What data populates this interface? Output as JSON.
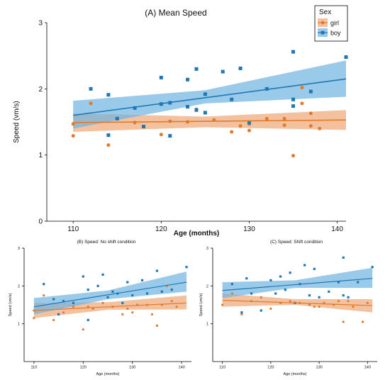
{
  "colors": {
    "girl": "#E07B2E",
    "boy": "#1F77B4",
    "girl_band": "#F0A675",
    "boy_band": "#6FB3E0"
  },
  "chart_data": [
    {
      "type": "scatter",
      "title": "(A) Mean Speed",
      "xlabel": "Age (months)",
      "ylabel": "Speed (vm/s)",
      "xlim": [
        107,
        141
      ],
      "ylim": [
        0,
        3
      ],
      "xticks": [
        110,
        120,
        130,
        140
      ],
      "yticks": [
        0,
        1,
        2,
        3
      ],
      "legend": {
        "title": "Sex",
        "position": "top-right",
        "entries": [
          "girl",
          "boy"
        ]
      },
      "series": [
        {
          "name": "girl",
          "points": [
            [
              110,
              1.29
            ],
            [
              110,
              1.47
            ],
            [
              112,
              1.78
            ],
            [
              114,
              1.15
            ],
            [
              117,
              1.49
            ],
            [
              120,
              1.31
            ],
            [
              121,
              1.51
            ],
            [
              123,
              1.5
            ],
            [
              124,
              1.69
            ],
            [
              126,
              1.53
            ],
            [
              128,
              1.35
            ],
            [
              129,
              1.44
            ],
            [
              130,
              1.37
            ],
            [
              130,
              1.47
            ],
            [
              132,
              1.55
            ],
            [
              134,
              1.55
            ],
            [
              134,
              1.45
            ],
            [
              135,
              0.99
            ],
            [
              136,
              1.78
            ],
            [
              136,
              2.02
            ],
            [
              137,
              1.63
            ],
            [
              137,
              1.44
            ],
            [
              138,
              1.4
            ]
          ],
          "fit": [
            [
              110,
              1.49
            ],
            [
              141,
              1.53
            ]
          ],
          "band": [
            [
              110,
              1.35,
              1.63
            ],
            [
              125,
              1.42,
              1.58
            ],
            [
              141,
              1.38,
              1.68
            ]
          ]
        },
        {
          "name": "boy",
          "points": [
            [
              112,
              2.0
            ],
            [
              114,
              1.91
            ],
            [
              114,
              1.3
            ],
            [
              115,
              1.55
            ],
            [
              117,
              1.71
            ],
            [
              118,
              1.43
            ],
            [
              120,
              2.17
            ],
            [
              120,
              1.77
            ],
            [
              121,
              1.79
            ],
            [
              121,
              1.29
            ],
            [
              123,
              2.14
            ],
            [
              123,
              1.73
            ],
            [
              124,
              2.3
            ],
            [
              124,
              1.68
            ],
            [
              125,
              1.92
            ],
            [
              125,
              1.64
            ],
            [
              127,
              2.26
            ],
            [
              128,
              1.84
            ],
            [
              129,
              2.31
            ],
            [
              130,
              1.49
            ],
            [
              132,
              2.0
            ],
            [
              135,
              2.56
            ],
            [
              135,
              1.84
            ],
            [
              135,
              1.74
            ],
            [
              137,
              1.96
            ],
            [
              141,
              2.48
            ]
          ],
          "fit": [
            [
              110,
              1.6
            ],
            [
              141,
              2.15
            ]
          ],
          "band": [
            [
              110,
              1.4,
              1.82
            ],
            [
              125,
              1.78,
              1.98
            ],
            [
              141,
              1.88,
              2.43
            ]
          ]
        }
      ]
    },
    {
      "type": "scatter",
      "title": "(B) Speed: No shift condition",
      "xlabel": "Age (months)",
      "ylabel": "Speed (vm/s)",
      "xlim": [
        108,
        142
      ],
      "ylim": [
        0,
        3
      ],
      "xticks": [
        110,
        120,
        130,
        140
      ],
      "yticks": [
        1,
        2,
        3
      ],
      "series": [
        {
          "name": "girl",
          "points": [
            [
              110,
              1.35
            ],
            [
              110,
              1.15
            ],
            [
              112,
              1.75
            ],
            [
              114,
              1.1
            ],
            [
              116,
              1.3
            ],
            [
              118,
              1.45
            ],
            [
              120,
              0.85
            ],
            [
              121,
              1.45
            ],
            [
              122,
              1.4
            ],
            [
              124,
              1.55
            ],
            [
              126,
              1.45
            ],
            [
              128,
              1.25
            ],
            [
              129,
              1.4
            ],
            [
              130,
              1.3
            ],
            [
              131,
              1.5
            ],
            [
              133,
              1.5
            ],
            [
              134,
              1.25
            ],
            [
              135,
              0.95
            ],
            [
              136,
              1.5
            ],
            [
              137,
              2.0
            ],
            [
              138,
              1.6
            ],
            [
              139,
              1.45
            ]
          ],
          "fit": [
            [
              110,
              1.35
            ],
            [
              141,
              1.55
            ]
          ],
          "band": [
            [
              110,
              1.15,
              1.55
            ],
            [
              125,
              1.37,
              1.57
            ],
            [
              141,
              1.38,
              1.75
            ]
          ]
        },
        {
          "name": "boy",
          "points": [
            [
              112,
              2.05
            ],
            [
              114,
              1.65
            ],
            [
              115,
              1.25
            ],
            [
              116,
              1.6
            ],
            [
              118,
              1.55
            ],
            [
              120,
              2.25
            ],
            [
              121,
              1.1
            ],
            [
              121,
              1.9
            ],
            [
              123,
              2.0
            ],
            [
              124,
              2.3
            ],
            [
              125,
              1.7
            ],
            [
              126,
              1.85
            ],
            [
              127,
              1.8
            ],
            [
              128,
              1.55
            ],
            [
              129,
              2.1
            ],
            [
              130,
              1.75
            ],
            [
              132,
              2.15
            ],
            [
              133,
              1.8
            ],
            [
              135,
              2.4
            ],
            [
              136,
              1.85
            ],
            [
              138,
              1.9
            ],
            [
              141,
              2.5
            ]
          ],
          "fit": [
            [
              110,
              1.45
            ],
            [
              141,
              2.1
            ]
          ],
          "band": [
            [
              110,
              1.25,
              1.68
            ],
            [
              125,
              1.65,
              1.88
            ],
            [
              141,
              1.85,
              2.38
            ]
          ]
        }
      ]
    },
    {
      "type": "scatter",
      "title": "(C) Speed: Shift condition",
      "xlabel": "Age (months)",
      "ylabel": "Speed (vm/s)",
      "xlim": [
        108,
        142
      ],
      "ylim": [
        0,
        3
      ],
      "xticks": [
        110,
        120,
        130,
        140
      ],
      "yticks": [
        1,
        2,
        3
      ],
      "series": [
        {
          "name": "girl",
          "points": [
            [
              110,
              1.5
            ],
            [
              112,
              1.8
            ],
            [
              114,
              1.25
            ],
            [
              116,
              1.6
            ],
            [
              118,
              1.7
            ],
            [
              120,
              1.4
            ],
            [
              122,
              1.55
            ],
            [
              124,
              1.6
            ],
            [
              126,
              1.55
            ],
            [
              128,
              1.5
            ],
            [
              129,
              1.45
            ],
            [
              130,
              1.45
            ],
            [
              131,
              1.55
            ],
            [
              133,
              1.5
            ],
            [
              134,
              1.6
            ],
            [
              135,
              1.05
            ],
            [
              136,
              1.6
            ],
            [
              137,
              1.45
            ],
            [
              139,
              1.05
            ],
            [
              140,
              1.55
            ]
          ],
          "fit": [
            [
              110,
              1.62
            ],
            [
              141,
              1.48
            ]
          ],
          "band": [
            [
              110,
              1.45,
              1.8
            ],
            [
              125,
              1.5,
              1.65
            ],
            [
              141,
              1.3,
              1.65
            ]
          ]
        },
        {
          "name": "boy",
          "points": [
            [
              112,
              2.05
            ],
            [
              114,
              1.3
            ],
            [
              115,
              2.2
            ],
            [
              116,
              1.8
            ],
            [
              118,
              1.35
            ],
            [
              120,
              2.15
            ],
            [
              121,
              1.8
            ],
            [
              122,
              2.25
            ],
            [
              123,
              1.9
            ],
            [
              124,
              2.35
            ],
            [
              125,
              1.55
            ],
            [
              126,
              2.05
            ],
            [
              127,
              2.55
            ],
            [
              128,
              1.75
            ],
            [
              129,
              2.45
            ],
            [
              130,
              1.7
            ],
            [
              132,
              1.85
            ],
            [
              134,
              2.1
            ],
            [
              135,
              1.75
            ],
            [
              135,
              2.75
            ],
            [
              136,
              1.7
            ],
            [
              138,
              2.1
            ],
            [
              141,
              2.5
            ]
          ],
          "fit": [
            [
              110,
              1.88
            ],
            [
              141,
              2.2
            ]
          ],
          "band": [
            [
              110,
              1.68,
              2.1
            ],
            [
              125,
              1.95,
              2.15
            ],
            [
              141,
              1.95,
              2.48
            ]
          ]
        }
      ]
    }
  ]
}
